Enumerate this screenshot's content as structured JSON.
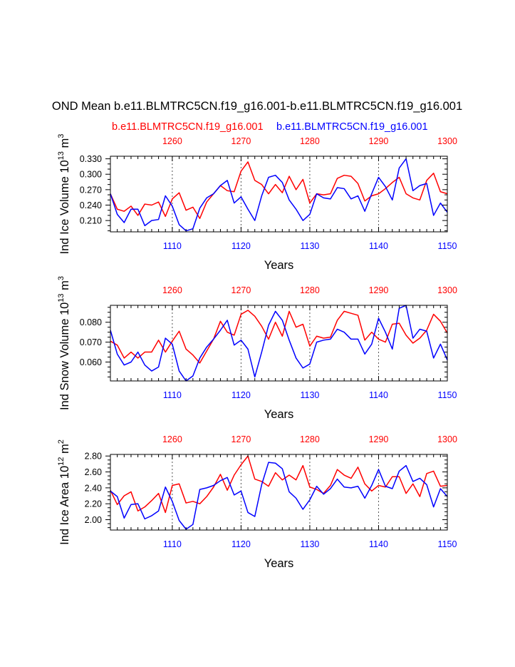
{
  "title": "OND Mean b.e11.BLMTRC5CN.f19_g16.001-b.e11.BLMTRC5CN.f19_g16.001",
  "legend": {
    "red_label": "b.e11.BLMTRC5CN.f19_g16.001",
    "blue_label": "b.e11.BLMTRC5CN.f19_g16.001"
  },
  "colors": {
    "red": "#ff0000",
    "blue": "#0000ff",
    "axis": "#000000"
  },
  "chart_data": [
    {
      "type": "line",
      "ylabel": "Ind Ice Volume 10^13 m^3",
      "ylabel_main": "Ind Ice Volume 10",
      "ylabel_exp": "13",
      "ylabel_unit": " m",
      "ylabel_unit_exp": "3",
      "xlabel": "Years",
      "xlim_bottom": [
        1101,
        1150
      ],
      "xlim_top": [
        1251,
        1300
      ],
      "ylim": [
        0.188,
        0.335
      ],
      "yticks": [
        0.21,
        0.24,
        0.27,
        0.3,
        0.33
      ],
      "ytick_labels": [
        "0.210",
        "0.240",
        "0.270",
        "0.300",
        "0.330"
      ],
      "ytick_minor": 0.01,
      "xticks_bottom": [
        1110,
        1120,
        1130,
        1140,
        1150
      ],
      "xticks_top": [
        1260,
        1270,
        1280,
        1290,
        1300
      ],
      "dashed_x": [
        1110,
        1120,
        1130,
        1140
      ],
      "series": [
        {
          "name": "b.e11.BLMTRC5CN.f19_g16.001 (years 1251-1300)",
          "color": "red",
          "values": [
            0.262,
            0.232,
            0.228,
            0.238,
            0.22,
            0.242,
            0.24,
            0.246,
            0.218,
            0.252,
            0.264,
            0.23,
            0.236,
            0.214,
            0.246,
            0.262,
            0.278,
            0.268,
            0.266,
            0.306,
            0.324,
            0.288,
            0.28,
            0.262,
            0.28,
            0.264,
            0.296,
            0.27,
            0.29,
            0.244,
            0.262,
            0.26,
            0.262,
            0.292,
            0.298,
            0.296,
            0.282,
            0.248,
            0.258,
            0.262,
            0.272,
            0.284,
            0.294,
            0.262,
            0.254,
            0.25,
            0.288,
            0.302,
            0.266,
            0.262
          ]
        },
        {
          "name": "b.e11.BLMTRC5CN.f19_g16.001 (years 1101-1150)",
          "color": "blue",
          "values": [
            0.262,
            0.222,
            0.206,
            0.232,
            0.232,
            0.2,
            0.21,
            0.212,
            0.258,
            0.238,
            0.202,
            0.19,
            0.194,
            0.234,
            0.254,
            0.262,
            0.278,
            0.288,
            0.244,
            0.256,
            0.232,
            0.21,
            0.258,
            0.294,
            0.298,
            0.284,
            0.25,
            0.232,
            0.21,
            0.222,
            0.262,
            0.254,
            0.252,
            0.274,
            0.272,
            0.252,
            0.258,
            0.228,
            0.262,
            0.294,
            0.276,
            0.25,
            0.312,
            0.33,
            0.268,
            0.278,
            0.282,
            0.22,
            0.244,
            0.226
          ]
        }
      ]
    },
    {
      "type": "line",
      "ylabel": "Ind Snow Volume 10^13 m^3",
      "ylabel_main": "Ind Snow Volume 10",
      "ylabel_exp": "13",
      "ylabel_unit": " m",
      "ylabel_unit_exp": "3",
      "xlabel": "Years",
      "xlim_bottom": [
        1101,
        1150
      ],
      "xlim_top": [
        1251,
        1300
      ],
      "ylim": [
        0.0505,
        0.0885
      ],
      "yticks": [
        0.06,
        0.07,
        0.08
      ],
      "ytick_labels": [
        "0.060",
        "0.070",
        "0.080"
      ],
      "ytick_minor": 0.0025,
      "xticks_bottom": [
        1110,
        1120,
        1130,
        1140,
        1150
      ],
      "xticks_top": [
        1260,
        1270,
        1280,
        1290,
        1300
      ],
      "dashed_x": [
        1110,
        1120,
        1130,
        1140
      ],
      "series": [
        {
          "name": "b.e11.BLMTRC5CN.f19_g16.001 (years 1251-1300)",
          "color": "red",
          "values": [
            0.0705,
            0.0685,
            0.062,
            0.065,
            0.062,
            0.065,
            0.065,
            0.071,
            0.065,
            0.0705,
            0.0755,
            0.0665,
            0.0635,
            0.0595,
            0.0655,
            0.0715,
            0.0805,
            0.075,
            0.0735,
            0.084,
            0.086,
            0.083,
            0.078,
            0.0715,
            0.08,
            0.073,
            0.0855,
            0.0775,
            0.079,
            0.068,
            0.073,
            0.072,
            0.0725,
            0.081,
            0.0855,
            0.0845,
            0.0835,
            0.071,
            0.075,
            0.0715,
            0.07,
            0.079,
            0.0795,
            0.0735,
            0.0695,
            0.072,
            0.076,
            0.084,
            0.0805,
            0.0745
          ]
        },
        {
          "name": "b.e11.BLMTRC5CN.f19_g16.001 (years 1101-1150)",
          "color": "blue",
          "values": [
            0.076,
            0.064,
            0.0585,
            0.06,
            0.065,
            0.0585,
            0.0555,
            0.0575,
            0.072,
            0.069,
            0.0555,
            0.0505,
            0.053,
            0.062,
            0.0675,
            0.0715,
            0.076,
            0.081,
            0.0685,
            0.071,
            0.0665,
            0.0525,
            0.065,
            0.0785,
            0.0855,
            0.081,
            0.071,
            0.062,
            0.057,
            0.059,
            0.07,
            0.071,
            0.0715,
            0.0765,
            0.075,
            0.0715,
            0.0715,
            0.064,
            0.069,
            0.082,
            0.075,
            0.0665,
            0.087,
            0.0885,
            0.072,
            0.0765,
            0.0755,
            0.062,
            0.069,
            0.061
          ]
        }
      ]
    },
    {
      "type": "line",
      "ylabel": "Ind Ice Area 10^12 m^2",
      "ylabel_main": "Ind Ice Area 10",
      "ylabel_exp": "12",
      "ylabel_unit": " m",
      "ylabel_unit_exp": "2",
      "xlabel": "Years",
      "xlim_bottom": [
        1101,
        1150
      ],
      "xlim_top": [
        1251,
        1300
      ],
      "ylim": [
        1.87,
        2.82
      ],
      "yticks": [
        2.0,
        2.2,
        2.4,
        2.6,
        2.8
      ],
      "ytick_labels": [
        "2.00",
        "2.20",
        "2.40",
        "2.60",
        "2.80"
      ],
      "ytick_minor": 0.05,
      "xticks_bottom": [
        1110,
        1120,
        1130,
        1140,
        1150
      ],
      "xticks_top": [
        1260,
        1270,
        1280,
        1290,
        1300
      ],
      "dashed_x": [
        1110,
        1120,
        1130,
        1140
      ],
      "series": [
        {
          "name": "b.e11.BLMTRC5CN.f19_g16.001 (years 1251-1300)",
          "color": "red",
          "values": [
            2.37,
            2.19,
            2.3,
            2.35,
            2.11,
            2.16,
            2.24,
            2.33,
            2.09,
            2.43,
            2.45,
            2.21,
            2.23,
            2.2,
            2.29,
            2.41,
            2.57,
            2.37,
            2.56,
            2.69,
            2.8,
            2.51,
            2.48,
            2.42,
            2.59,
            2.5,
            2.56,
            2.5,
            2.68,
            2.41,
            2.38,
            2.33,
            2.43,
            2.63,
            2.56,
            2.52,
            2.66,
            2.45,
            2.36,
            2.43,
            2.41,
            2.54,
            2.54,
            2.33,
            2.45,
            2.29,
            2.58,
            2.61,
            2.42,
            2.43
          ]
        },
        {
          "name": "b.e11.BLMTRC5CN.f19_g16.001 (years 1101-1150)",
          "color": "blue",
          "values": [
            2.36,
            2.29,
            2.02,
            2.19,
            2.2,
            2.01,
            2.05,
            2.11,
            2.41,
            2.23,
            1.99,
            1.88,
            1.94,
            2.38,
            2.4,
            2.43,
            2.49,
            2.53,
            2.31,
            2.36,
            2.09,
            2.04,
            2.44,
            2.72,
            2.71,
            2.64,
            2.35,
            2.27,
            2.13,
            2.25,
            2.42,
            2.32,
            2.39,
            2.51,
            2.41,
            2.4,
            2.42,
            2.27,
            2.43,
            2.63,
            2.42,
            2.39,
            2.61,
            2.68,
            2.48,
            2.52,
            2.44,
            2.16,
            2.39,
            2.29
          ]
        }
      ]
    }
  ]
}
